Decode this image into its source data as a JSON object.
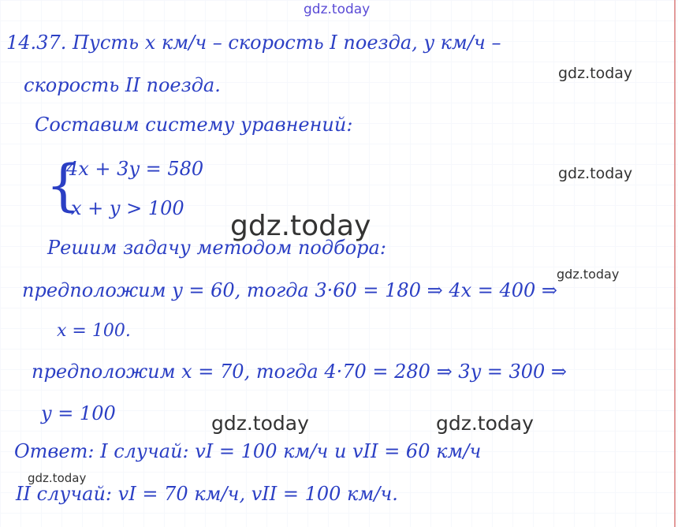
{
  "watermark": "gdz.today",
  "lines": [
    "14.37. Пусть x км/ч – скорость I поезда, y км/ч –",
    "скорость II поезда.",
    "Составим систему уравнений:",
    "4x + 3y = 580",
    "x + y > 100",
    "Решим задачу методом подбора:",
    "предположим y = 60, тогда 3·60 = 180 ⇒ 4x = 400 ⇒",
    "x = 100.",
    "предположим x = 70, тогда 4·70 = 280 ⇒ 3y = 300 ⇒",
    "y = 100",
    "Ответ: I случай: vI = 100 км/ч и vII = 60 км/ч",
    "II случай: vI = 70 км/ч, vII = 100 км/ч."
  ],
  "colors": {
    "ink": "#2b3fc4",
    "margin": "#e29a9a"
  }
}
